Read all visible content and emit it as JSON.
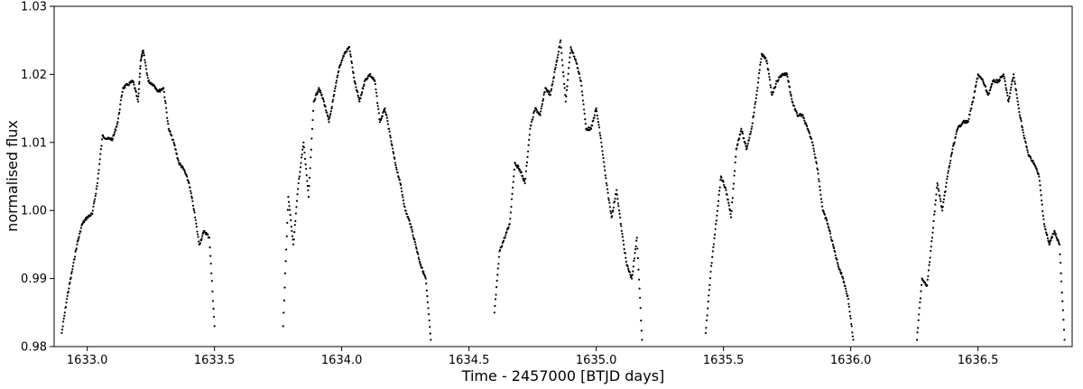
{
  "chart_data": {
    "type": "scatter",
    "title": "",
    "xlabel": "Time - 2457000 [BTJD days]",
    "ylabel": "normalised flux",
    "xlim": [
      1632.87,
      1636.87
    ],
    "ylim": [
      0.98,
      1.03
    ],
    "xticks": [
      {
        "value": 1633.0,
        "label": "1633.0"
      },
      {
        "value": 1633.5,
        "label": "1633.5"
      },
      {
        "value": 1634.0,
        "label": "1634.0"
      },
      {
        "value": 1634.5,
        "label": "1634.5"
      },
      {
        "value": 1635.0,
        "label": "1635.0"
      },
      {
        "value": 1635.5,
        "label": "1635.5"
      },
      {
        "value": 1636.0,
        "label": "1636.0"
      },
      {
        "value": 1636.5,
        "label": "1636.5"
      }
    ],
    "yticks": [
      {
        "value": 0.98,
        "label": "0.98"
      },
      {
        "value": 0.99,
        "label": "0.99"
      },
      {
        "value": 1.0,
        "label": "1.00"
      },
      {
        "value": 1.01,
        "label": "1.01"
      },
      {
        "value": 1.02,
        "label": "1.02"
      },
      {
        "value": 1.03,
        "label": "1.03"
      }
    ],
    "grid": false,
    "legend": "none",
    "marker_color": "#000000",
    "series": [
      {
        "x": [
          1632.9,
          1632.92,
          1632.94,
          1632.96,
          1632.98,
          1633.0,
          1633.02,
          1633.04,
          1633.06,
          1633.08,
          1633.1,
          1633.12,
          1633.14,
          1633.16,
          1633.18,
          1633.2,
          1633.21,
          1633.22,
          1633.24,
          1633.26,
          1633.28,
          1633.3,
          1633.32,
          1633.34,
          1633.36,
          1633.38,
          1633.4,
          1633.42,
          1633.44,
          1633.46,
          1633.48,
          1633.5
        ],
        "y": [
          0.982,
          0.987,
          0.991,
          0.995,
          0.998,
          0.999,
          0.9995,
          1.004,
          1.011,
          1.0105,
          1.0105,
          1.013,
          1.018,
          1.0185,
          1.019,
          1.016,
          1.022,
          1.0235,
          1.019,
          1.0185,
          1.0175,
          1.018,
          1.012,
          1.01,
          1.007,
          1.006,
          1.004,
          1.0,
          0.995,
          0.997,
          0.996,
          0.983
        ]
      },
      {
        "x": [
          1633.77,
          1633.79,
          1633.81,
          1633.83,
          1633.85,
          1633.87,
          1633.89,
          1633.91,
          1633.93,
          1633.95,
          1633.97,
          1633.99,
          1634.01,
          1634.03,
          1634.05,
          1634.07,
          1634.09,
          1634.11,
          1634.13,
          1634.15,
          1634.17,
          1634.19,
          1634.21,
          1634.23,
          1634.25,
          1634.27,
          1634.29,
          1634.31,
          1634.33,
          1634.35
        ],
        "y": [
          0.983,
          1.002,
          0.995,
          1.004,
          1.01,
          1.002,
          1.016,
          1.018,
          1.016,
          1.013,
          1.017,
          1.021,
          1.023,
          1.024,
          1.019,
          1.016,
          1.019,
          1.02,
          1.019,
          1.013,
          1.015,
          1.011,
          1.007,
          1.004,
          1.0,
          0.998,
          0.995,
          0.992,
          0.99,
          0.981
        ]
      },
      {
        "x": [
          1634.6,
          1634.62,
          1634.64,
          1634.66,
          1634.68,
          1634.7,
          1634.72,
          1634.74,
          1634.76,
          1634.78,
          1634.8,
          1634.82,
          1634.84,
          1634.86,
          1634.88,
          1634.9,
          1634.92,
          1634.94,
          1634.96,
          1634.98,
          1635.0,
          1635.02,
          1635.04,
          1635.06,
          1635.08,
          1635.1,
          1635.12,
          1635.14,
          1635.16,
          1635.18
        ],
        "y": [
          0.985,
          0.994,
          0.996,
          0.998,
          1.007,
          1.006,
          1.004,
          1.012,
          1.015,
          1.014,
          1.018,
          1.017,
          1.021,
          1.025,
          1.016,
          1.024,
          1.022,
          1.019,
          1.012,
          1.012,
          1.015,
          1.01,
          1.004,
          0.999,
          1.003,
          0.997,
          0.992,
          0.99,
          0.996,
          0.981
        ]
      },
      {
        "x": [
          1635.43,
          1635.45,
          1635.47,
          1635.49,
          1635.51,
          1635.53,
          1635.55,
          1635.57,
          1635.59,
          1635.61,
          1635.63,
          1635.65,
          1635.67,
          1635.69,
          1635.71,
          1635.73,
          1635.75,
          1635.77,
          1635.79,
          1635.81,
          1635.83,
          1635.85,
          1635.87,
          1635.89,
          1635.91,
          1635.93,
          1635.95,
          1635.97,
          1635.99,
          1636.01
        ],
        "y": [
          0.982,
          0.991,
          0.998,
          1.005,
          1.003,
          0.999,
          1.009,
          1.012,
          1.009,
          1.012,
          1.017,
          1.023,
          1.022,
          1.017,
          1.019,
          1.02,
          1.02,
          1.016,
          1.014,
          1.014,
          1.012,
          1.01,
          1.006,
          1.0,
          0.998,
          0.995,
          0.992,
          0.99,
          0.987,
          0.981
        ]
      },
      {
        "x": [
          1636.26,
          1636.28,
          1636.3,
          1636.32,
          1636.34,
          1636.36,
          1636.38,
          1636.4,
          1636.42,
          1636.44,
          1636.46,
          1636.48,
          1636.5,
          1636.52,
          1636.54,
          1636.56,
          1636.58,
          1636.6,
          1636.62,
          1636.64,
          1636.66,
          1636.68,
          1636.7,
          1636.72,
          1636.74,
          1636.76,
          1636.78,
          1636.8,
          1636.82,
          1636.84
        ],
        "y": [
          0.981,
          0.99,
          0.989,
          0.996,
          1.004,
          1.0,
          1.005,
          1.009,
          1.012,
          1.013,
          1.013,
          1.016,
          1.02,
          1.019,
          1.017,
          1.019,
          1.019,
          1.02,
          1.016,
          1.02,
          1.015,
          1.011,
          1.008,
          1.007,
          1.005,
          0.998,
          0.995,
          0.997,
          0.995,
          0.981
        ]
      }
    ]
  }
}
